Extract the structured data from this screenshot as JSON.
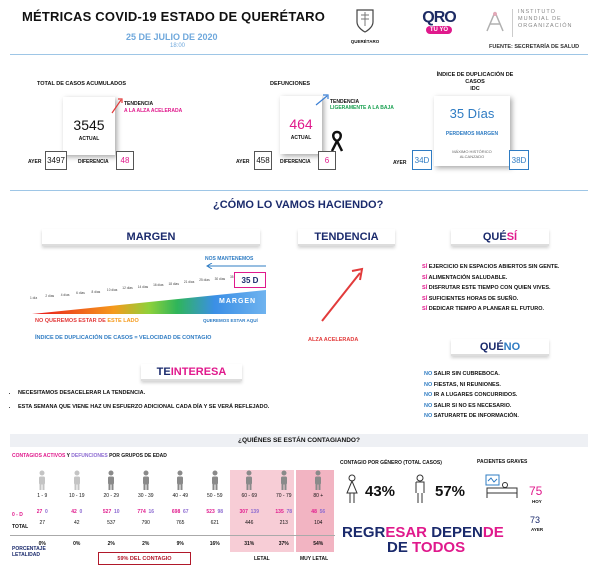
{
  "header": {
    "title": "MÉTRICAS COVID-19 ESTADO DE QUERÉTARO",
    "date": "25 DE JULIO DE 2020",
    "time": "18:00",
    "seal_label": "QUERÉTARO",
    "qro_logo_top": "QRO",
    "qro_logo_bottom": "TÚ YO",
    "institute_line1": "INSTITUTO",
    "institute_line2": "MUNDIAL DE",
    "institute_line3": "ORGANIZACIÓN",
    "source": "FUENTE: SECRETARÍA DE SALUD"
  },
  "cases": {
    "title": "TOTAL DE CASOS ACUMULADOS",
    "value": "3545",
    "current_label": "ACTUAL",
    "trend_title": "TENDENCIA",
    "trend_text": "A LA ALZA ACELERADA",
    "yesterday_label": "AYER",
    "yesterday": "3497",
    "diff_label": "DIFERENCIA",
    "diff": "48"
  },
  "deaths": {
    "title": "DEFUNCIONES",
    "value": "464",
    "current_label": "ACTUAL",
    "trend_title": "TENDENCIA",
    "trend_text": "LIGERAMENTE A LA BAJA",
    "yesterday_label": "AYER",
    "yesterday": "458",
    "diff_label": "DIFERENCIA",
    "diff": "6"
  },
  "idc": {
    "title1": "ÍNDICE DE DUPLICACIÓN DE",
    "title2": "CASOS",
    "title3": "IDC",
    "value": "35 Días",
    "status": "PERDEMOS MARGEN",
    "yesterday_label": "AYER",
    "yesterday": "34D",
    "max_label1": "MÁXIMO HISTÓRICO",
    "max_label2": "ALCANZADO",
    "max": "38D"
  },
  "how": {
    "title": "¿CÓMO LO VAMOS HACIENDO?",
    "margin_label": "MARGEN",
    "trend_label": "TENDENCIA",
    "yes_label_1": "QUÉ ",
    "yes_label_2": "SÍ",
    "maintain": "NOS MANTENEMOS",
    "badge": "35 D",
    "bar_label": "MARGEN",
    "bad_side_1": "NO QUEREMOS ESTAR DE ",
    "bad_side_2": "ESTE LADO",
    "good_side": "QUEREMOS ESTAR AQUÍ",
    "formula": "ÍNDICE DE DUPLICACIÓN DE CASOS = VELOCIDAD DE CONTAGIO",
    "trend_text": "ALZA ACELERADA",
    "scale": [
      "1 día",
      "2 días",
      "4 días",
      "6 días",
      "8 días",
      "10 días",
      "12 días",
      "14 días",
      "16 días",
      "18 días",
      "21 días",
      "25 días",
      "30 días",
      "35 días"
    ],
    "yes_items": [
      {
        "a": "SÍ",
        "b": " EJERCICIO EN ESPACIOS ABIERTOS SIN GENTE."
      },
      {
        "a": "SÍ",
        "b": " ALIMENTACIÓN SALUDABLE."
      },
      {
        "a": "SÍ",
        "b": " DISFRUTAR ESTE TIEMPO CON QUIEN VIVES."
      },
      {
        "a": "SÍ",
        "b": " SUFICIENTES HORAS DE SUEÑO."
      },
      {
        "a": "SÍ",
        "b": " DEDICAR TIEMPO A PLANEAR EL FUTURO."
      }
    ],
    "no_label_1": "QUÉ ",
    "no_label_2": "NO",
    "no_items": [
      {
        "a": "NO",
        "b": " SALIR SIN CUBREBOCA."
      },
      {
        "a": "NO",
        "b": " FIESTAS, NI REUNIONES."
      },
      {
        "a": "NO",
        "b": " IR A LUGARES CONCURRIDOS."
      },
      {
        "a": "NO",
        "b": " SALIR SI NO ES NECESARIO."
      },
      {
        "a": "NO",
        "b": " SATURARTE DE INFORMACIÓN."
      }
    ]
  },
  "interest": {
    "label_1": "TE ",
    "label_2": "INTERESA",
    "items": [
      "NECESITAMOS DESACELERAR LA TENDENCIA.",
      "ESTA SEMANA QUE VIENE HAZ UN ESFUERZO ADICIONAL CADA DÍA Y SE VERÁ REFLEJADO."
    ]
  },
  "who": {
    "title": "¿QUIÉNES SE ESTÁN CONTAGIANDO?",
    "legend_1": "CONTAGIOS ACTIVOS",
    "legend_2": " Y ",
    "legend_3": "DEFUNCIONES",
    "legend_4": " POR GRUPOS DE EDAD",
    "row_label_1": "0 - D",
    "row_label_2": "TOTAL",
    "pct_label_1": "PORCENTAJE",
    "pct_label_2": "LETALIDAD",
    "groups": [
      {
        "age": "1 - 9",
        "active": "27",
        "deaths": "0",
        "total": "27",
        "pct": "0%"
      },
      {
        "age": "10 - 19",
        "active": "42",
        "deaths": "0",
        "total": "42",
        "pct": "0%"
      },
      {
        "age": "20 - 29",
        "active": "527",
        "deaths": "10",
        "total": "537",
        "pct": "2%"
      },
      {
        "age": "30 - 39",
        "active": "774",
        "deaths": "16",
        "total": "790",
        "pct": "2%"
      },
      {
        "age": "40 - 49",
        "active": "698",
        "deaths": "67",
        "total": "765",
        "pct": "9%"
      },
      {
        "age": "50 - 59",
        "active": "523",
        "deaths": "98",
        "total": "621",
        "pct": "16%"
      },
      {
        "age": "60 - 69",
        "active": "307",
        "deaths": "139",
        "total": "446",
        "pct": "31%"
      },
      {
        "age": "70 - 79",
        "active": "135",
        "deaths": "78",
        "total": "213",
        "pct": "37%"
      },
      {
        "age": "80 +",
        "active": "48",
        "deaths": "56",
        "total": "104",
        "pct": "54%"
      }
    ],
    "contagion_share": "59%  DEL CONTAGIO",
    "lethal": "LETAL",
    "very_lethal": "MUY LETAL",
    "gender_title": "CONTAGIO POR GÉNERO (TOTAL CASOS)",
    "female_pct": "43%",
    "male_pct": "57%",
    "severe_title": "PACIENTES GRAVES",
    "severe_today": "75",
    "today_label": "HOY",
    "severe_yesterday": "73",
    "yesterday_label": "AYER",
    "slogan_1a": "REGR",
    "slogan_1b": "ESAR",
    "slogan_1c": " DEPEN",
    "slogan_1d": "DE",
    "slogan_2a": "DE ",
    "slogan_2b": "TODOS"
  },
  "colors": {
    "pink": "#e0198c",
    "blue": "#2f7cc3",
    "navy": "#1a2a6c",
    "lethal_bg": "#f7cdd6"
  }
}
